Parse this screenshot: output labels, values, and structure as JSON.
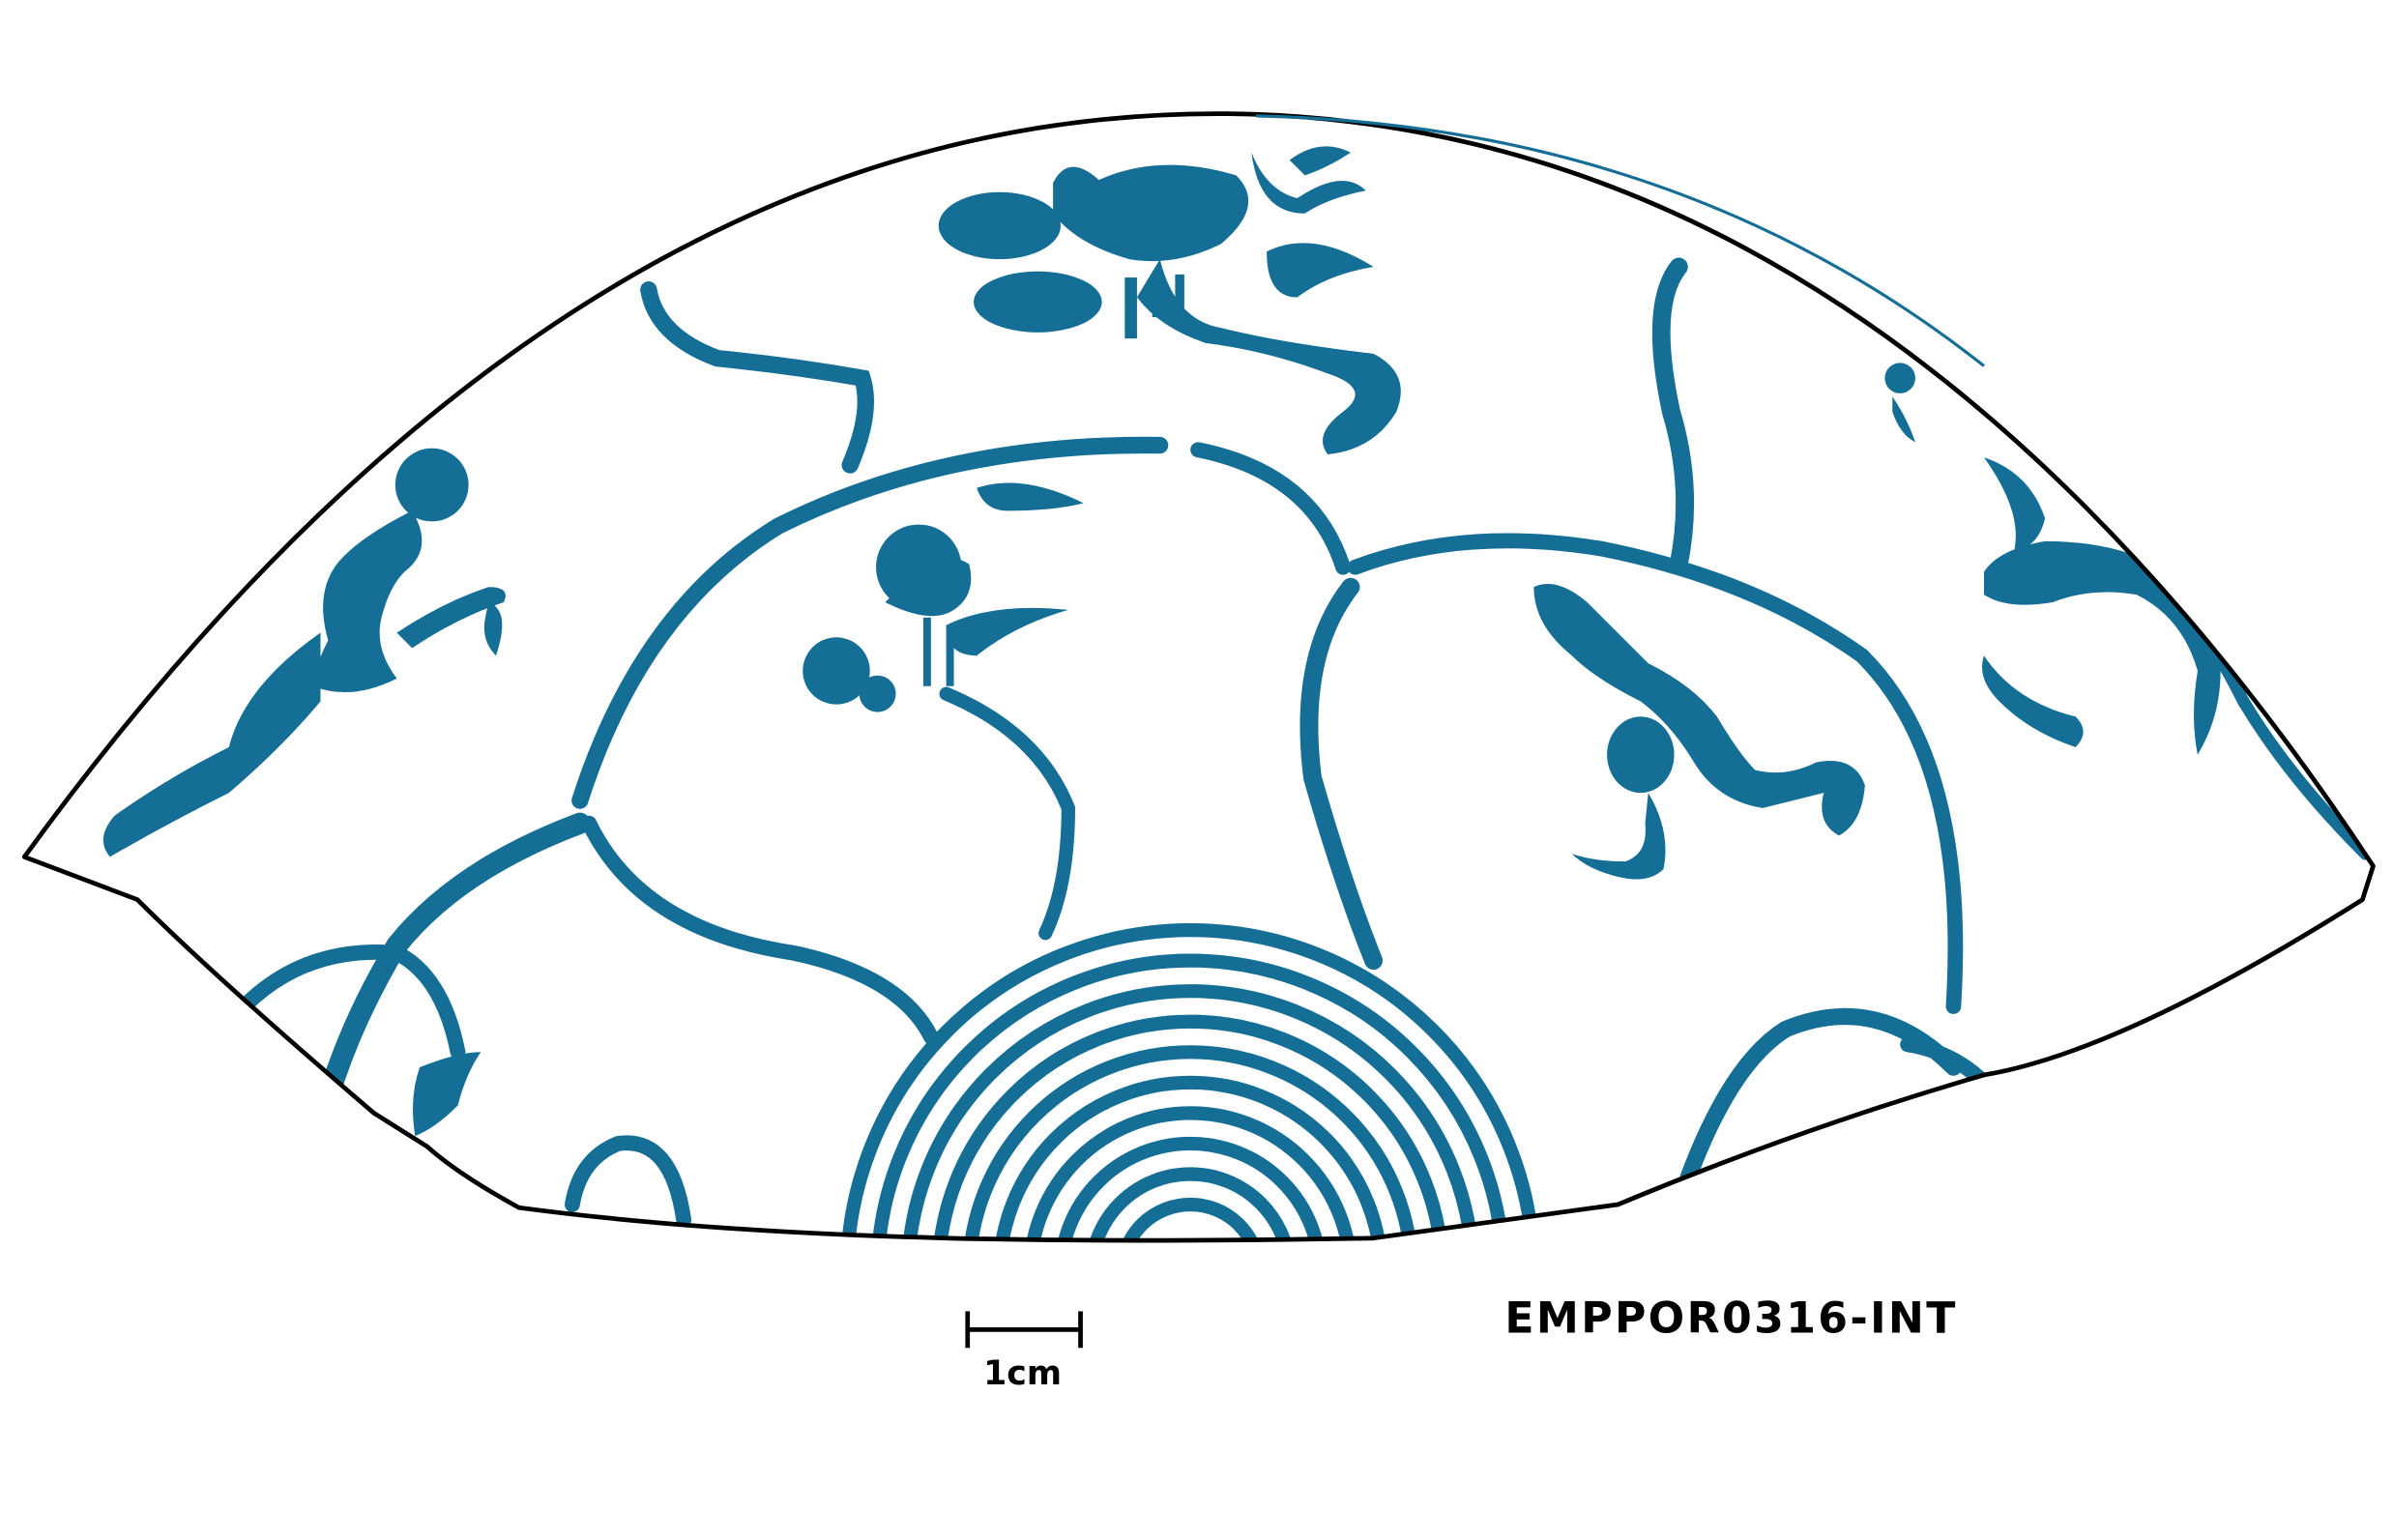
{
  "drawing": {
    "catalog_id": "EMPPOR0316-INT",
    "scale_bar_label": "1cm",
    "colors": {
      "glaze": "#146e96",
      "outline": "#000000",
      "background": "#ffffff"
    }
  }
}
